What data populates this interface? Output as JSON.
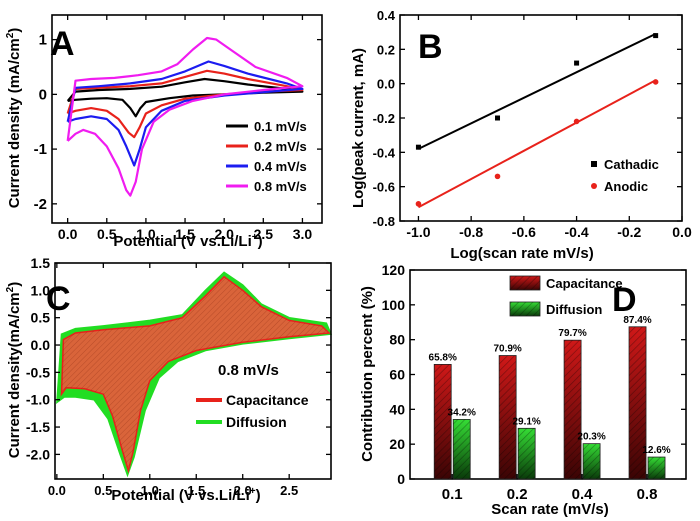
{
  "colors": {
    "black": "#000000",
    "red": "#e8221b",
    "blue": "#1c1cf0",
    "magenta": "#f01cf0",
    "orange_fill": "#d96a3a",
    "green_fill": "#22dd22",
    "bar_red": "#c81414",
    "bar_green": "#2bcc2b"
  },
  "chart_data": [
    {
      "panel": "A",
      "type": "line",
      "xlabel": "Potential (V vs.Li/Li",
      "xlabel_sup": "+",
      "xlabel_end": ")",
      "ylabel": "Current density (mA/cm",
      "ylabel_sup": "2",
      "ylabel_end": ")",
      "xlim": [
        -0.2,
        3.25
      ],
      "ylim": [
        -2.35,
        1.45
      ],
      "xticks": [
        "0.0",
        "0.5",
        "1.0",
        "1.5",
        "2.0",
        "2.5",
        "3.0"
      ],
      "xtick_values": [
        0,
        0.5,
        1,
        1.5,
        2,
        2.5,
        3
      ],
      "yticks": [
        "-2",
        "-1",
        "0",
        "1"
      ],
      "ytick_values": [
        -2,
        -1,
        0,
        1
      ],
      "legend_position": "lower-right",
      "series": [
        {
          "name": "0.1 mV/s",
          "color": "#000000",
          "points": [
            [
              0.0,
              -0.12
            ],
            [
              0.1,
              -0.1
            ],
            [
              0.3,
              -0.08
            ],
            [
              0.5,
              -0.07
            ],
            [
              0.7,
              -0.1
            ],
            [
              0.8,
              -0.25
            ],
            [
              0.87,
              -0.4
            ],
            [
              0.93,
              -0.25
            ],
            [
              1.0,
              -0.14
            ],
            [
              1.3,
              -0.07
            ],
            [
              1.6,
              -0.02
            ],
            [
              2.0,
              0.0
            ],
            [
              2.5,
              0.03
            ],
            [
              3.0,
              0.05
            ],
            [
              2.8,
              0.1
            ],
            [
              2.3,
              0.18
            ],
            [
              2.0,
              0.24
            ],
            [
              1.75,
              0.28
            ],
            [
              1.5,
              0.22
            ],
            [
              1.2,
              0.14
            ],
            [
              0.8,
              0.1
            ],
            [
              0.4,
              0.08
            ],
            [
              0.1,
              0.05
            ],
            [
              0.0,
              -0.12
            ]
          ]
        },
        {
          "name": "0.2 mV/s",
          "color": "#e8221b",
          "points": [
            [
              0.0,
              -0.35
            ],
            [
              0.1,
              -0.3
            ],
            [
              0.3,
              -0.25
            ],
            [
              0.5,
              -0.3
            ],
            [
              0.65,
              -0.45
            ],
            [
              0.78,
              -0.7
            ],
            [
              0.85,
              -0.78
            ],
            [
              0.92,
              -0.6
            ],
            [
              1.0,
              -0.35
            ],
            [
              1.2,
              -0.2
            ],
            [
              1.5,
              -0.08
            ],
            [
              2.0,
              0.0
            ],
            [
              2.5,
              0.05
            ],
            [
              3.0,
              0.08
            ],
            [
              2.8,
              0.15
            ],
            [
              2.3,
              0.28
            ],
            [
              2.0,
              0.38
            ],
            [
              1.78,
              0.43
            ],
            [
              1.5,
              0.32
            ],
            [
              1.2,
              0.2
            ],
            [
              0.8,
              0.15
            ],
            [
              0.4,
              0.12
            ],
            [
              0.1,
              0.1
            ],
            [
              0.0,
              -0.35
            ]
          ]
        },
        {
          "name": "0.4 mV/s",
          "color": "#1c1cf0",
          "points": [
            [
              0.0,
              -0.5
            ],
            [
              0.1,
              -0.45
            ],
            [
              0.3,
              -0.4
            ],
            [
              0.5,
              -0.45
            ],
            [
              0.65,
              -0.65
            ],
            [
              0.75,
              -0.95
            ],
            [
              0.85,
              -1.3
            ],
            [
              0.92,
              -1.0
            ],
            [
              1.0,
              -0.6
            ],
            [
              1.2,
              -0.3
            ],
            [
              1.5,
              -0.12
            ],
            [
              2.0,
              -0.02
            ],
            [
              2.5,
              0.04
            ],
            [
              3.0,
              0.1
            ],
            [
              2.8,
              0.2
            ],
            [
              2.3,
              0.38
            ],
            [
              2.0,
              0.52
            ],
            [
              1.8,
              0.6
            ],
            [
              1.5,
              0.42
            ],
            [
              1.2,
              0.28
            ],
            [
              0.8,
              0.2
            ],
            [
              0.4,
              0.15
            ],
            [
              0.1,
              0.12
            ],
            [
              0.0,
              -0.5
            ]
          ]
        },
        {
          "name": "0.8 mV/s",
          "color": "#f01cf0",
          "points": [
            [
              0.0,
              -0.85
            ],
            [
              0.1,
              -0.72
            ],
            [
              0.2,
              -0.65
            ],
            [
              0.35,
              -0.72
            ],
            [
              0.5,
              -0.95
            ],
            [
              0.65,
              -1.35
            ],
            [
              0.75,
              -1.75
            ],
            [
              0.8,
              -1.85
            ],
            [
              0.87,
              -1.6
            ],
            [
              0.95,
              -1.0
            ],
            [
              1.1,
              -0.5
            ],
            [
              1.3,
              -0.28
            ],
            [
              1.6,
              -0.12
            ],
            [
              2.0,
              0.0
            ],
            [
              2.5,
              0.08
            ],
            [
              3.0,
              0.15
            ],
            [
              2.8,
              0.3
            ],
            [
              2.4,
              0.5
            ],
            [
              2.1,
              0.8
            ],
            [
              1.9,
              1.0
            ],
            [
              1.78,
              1.03
            ],
            [
              1.6,
              0.82
            ],
            [
              1.4,
              0.55
            ],
            [
              1.2,
              0.42
            ],
            [
              0.9,
              0.35
            ],
            [
              0.6,
              0.3
            ],
            [
              0.3,
              0.28
            ],
            [
              0.1,
              0.25
            ],
            [
              0.0,
              -0.85
            ]
          ]
        }
      ]
    },
    {
      "panel": "B",
      "type": "scatter",
      "xlabel": "Log(scan rate mV/s)",
      "ylabel": "Log(peak current, mA)",
      "xlim": [
        -1.07,
        0.0
      ],
      "ylim": [
        -0.8,
        0.4
      ],
      "xticks": [
        "-1.0",
        "-0.8",
        "-0.6",
        "-0.4",
        "-0.2",
        "0.0"
      ],
      "xtick_values": [
        -1.0,
        -0.8,
        -0.6,
        -0.4,
        -0.2,
        0.0
      ],
      "yticks": [
        "-0.8",
        "-0.6",
        "-0.4",
        "-0.2",
        "0.0",
        "0.2",
        "0.4"
      ],
      "ytick_values": [
        -0.8,
        -0.6,
        -0.4,
        -0.2,
        0.0,
        0.2,
        0.4
      ],
      "legend_position": "lower-right",
      "series": [
        {
          "name": "Cathadic",
          "color": "#000000",
          "marker": "square",
          "x": [
            -1.0,
            -0.7,
            -0.4,
            -0.1
          ],
          "y": [
            -0.37,
            -0.2,
            0.12,
            0.28
          ],
          "fit": [
            [
              -1.0,
              -0.38
            ],
            [
              -0.1,
              0.29
            ]
          ]
        },
        {
          "name": "Anodic",
          "color": "#e8221b",
          "marker": "circle",
          "x": [
            -1.0,
            -0.7,
            -0.4,
            -0.1
          ],
          "y": [
            -0.7,
            -0.54,
            -0.22,
            0.01
          ],
          "fit": [
            [
              -1.0,
              -0.72
            ],
            [
              -0.1,
              0.02
            ]
          ]
        }
      ]
    },
    {
      "panel": "C",
      "type": "area",
      "xlabel": "Potential (V vs.Li/Li",
      "xlabel_sup": "+",
      "xlabel_end": ")",
      "ylabel": "Current density(mA/cm",
      "ylabel_sup": "2",
      "ylabel_end": ")",
      "xlim": [
        -0.02,
        2.95
      ],
      "ylim": [
        -2.45,
        1.5
      ],
      "xticks": [
        "0.0",
        "0.5",
        "1.0",
        "1.5",
        "2.0",
        "2.5"
      ],
      "xtick_values": [
        0,
        0.5,
        1,
        1.5,
        2,
        2.5
      ],
      "yticks": [
        "-2.0",
        "-1.5",
        "-1.0",
        "-0.5",
        "0.0",
        "0.5",
        "1.0",
        "1.5"
      ],
      "ytick_values": [
        -2,
        -1.5,
        -1,
        -0.5,
        0,
        0.5,
        1,
        1.5
      ],
      "annotation": "0.8 mV/s",
      "legend_position": "lower-right",
      "series": [
        {
          "name": "Capacitance",
          "color": "#e8221b",
          "points": [
            [
              0.05,
              -0.9
            ],
            [
              0.1,
              -0.78
            ],
            [
              0.3,
              -0.8
            ],
            [
              0.5,
              -0.9
            ],
            [
              0.6,
              -1.3
            ],
            [
              0.7,
              -1.9
            ],
            [
              0.77,
              -2.3
            ],
            [
              0.82,
              -1.95
            ],
            [
              0.9,
              -1.2
            ],
            [
              1.0,
              -0.65
            ],
            [
              1.2,
              -0.3
            ],
            [
              1.5,
              -0.1
            ],
            [
              2.0,
              0.05
            ],
            [
              2.5,
              0.15
            ],
            [
              2.93,
              0.22
            ],
            [
              2.85,
              0.35
            ],
            [
              2.5,
              0.45
            ],
            [
              2.2,
              0.7
            ],
            [
              2.0,
              1.0
            ],
            [
              1.8,
              1.25
            ],
            [
              1.6,
              0.9
            ],
            [
              1.35,
              0.5
            ],
            [
              1.0,
              0.35
            ],
            [
              0.5,
              0.28
            ],
            [
              0.2,
              0.22
            ],
            [
              0.07,
              0.1
            ],
            [
              0.05,
              -0.9
            ]
          ]
        },
        {
          "name": "Diffusion",
          "color": "#22dd22",
          "points": [
            [
              0.0,
              -1.05
            ],
            [
              0.08,
              -0.95
            ],
            [
              0.2,
              -0.95
            ],
            [
              0.4,
              -1.0
            ],
            [
              0.55,
              -1.35
            ],
            [
              0.68,
              -2.0
            ],
            [
              0.76,
              -2.38
            ],
            [
              0.83,
              -2.05
            ],
            [
              0.95,
              -1.2
            ],
            [
              1.1,
              -0.6
            ],
            [
              1.3,
              -0.3
            ],
            [
              1.6,
              -0.1
            ],
            [
              2.0,
              0.02
            ],
            [
              2.5,
              0.12
            ],
            [
              2.95,
              0.2
            ],
            [
              2.9,
              0.4
            ],
            [
              2.5,
              0.5
            ],
            [
              2.2,
              0.75
            ],
            [
              2.0,
              1.1
            ],
            [
              1.8,
              1.33
            ],
            [
              1.6,
              1.0
            ],
            [
              1.35,
              0.55
            ],
            [
              1.0,
              0.45
            ],
            [
              0.5,
              0.35
            ],
            [
              0.2,
              0.3
            ],
            [
              0.05,
              0.2
            ],
            [
              0.0,
              -1.05
            ]
          ]
        }
      ]
    },
    {
      "panel": "D",
      "type": "bar",
      "xlabel": "Scan rate (mV/s)",
      "ylabel": "Contribution percent (%)",
      "ylim": [
        0,
        120
      ],
      "yticks": [
        "0",
        "20",
        "40",
        "60",
        "80",
        "100",
        "120"
      ],
      "ytick_values": [
        0,
        20,
        40,
        60,
        80,
        100,
        120
      ],
      "categories": [
        "0.1",
        "0.2",
        "0.4",
        "0.8"
      ],
      "legend_position": "top-right",
      "series": [
        {
          "name": "Capacitance",
          "color": "#c81414",
          "values": [
            65.8,
            70.9,
            79.7,
            87.4
          ],
          "labels": [
            "65.8%",
            "70.9%",
            "79.7%",
            "87.4%"
          ]
        },
        {
          "name": "Diffusion",
          "color": "#2bcc2b",
          "values": [
            34.2,
            29.1,
            20.3,
            12.6
          ],
          "labels": [
            "34.2%",
            "29.1%",
            "20.3%",
            "12.6%"
          ]
        }
      ]
    }
  ]
}
